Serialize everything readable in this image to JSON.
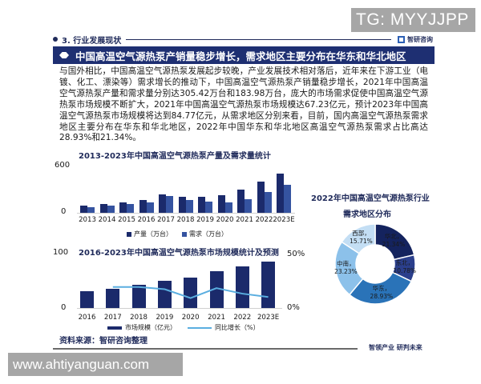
{
  "overlays": {
    "top_right_tag": "TG: MYYJJPP",
    "bottom_left_url": "www.ahtiyanguan.com"
  },
  "header": {
    "section": "3. 行业发展现状",
    "brand": "智研咨询",
    "title": "中国高温空气源热泵产销量稳步增长，需求地区主要分布在华东和华北地区"
  },
  "body_text": "与国外相比，中国高温空气源热泵发展起步较晚，产业发展技术相对落后，近年来在下游工业（电镀、化工、漂染等）需求增长的推动下，中国高温空气源热泵产销量稳步增长，2021年中国高温空气源热泵产量和需求量分别达305.42万台和183.98万台，庞大的市场需求促使中国高温空气源热泵市场规模不断扩大，2021年中国高温空气源热泵市场规模达67.23亿元，预计2023年中国高温空气源热泵市场规模将达到84.77亿元，从需求地区分别来看，目前，国内高温空气源热泵需求地区主要分布在华东和华北地区，2022年中国华东和华北地区高温空气源热泵需求占比高达28.93%和21.34%。",
  "footer": {
    "source": "资料来源：智研咨询整理",
    "slogan": "智领产业 研判未来"
  },
  "colors": {
    "navy": "#1e2f72",
    "production": "#1b2a6b",
    "demand": "#3553a0",
    "market": "#1b2a6b",
    "growth_line": "#5aaee0",
    "pie": [
      "#14235e",
      "#2b3f8c",
      "#2a73b8",
      "#8cc1ea",
      "#c3def4"
    ]
  },
  "chart_data": [
    {
      "type": "bar",
      "title": "2013-2023年中国高温空气源热泵产量及需求量统计",
      "categories": [
        "2013",
        "2014",
        "2015",
        "2016",
        "2017",
        "2018",
        "2019",
        "2020",
        "2021",
        "2022",
        "2023E"
      ],
      "series": [
        {
          "name": "产量（万台）",
          "values": [
            95,
            115,
            135,
            165,
            245,
            210,
            210,
            230,
            305.42,
            410,
            515
          ]
        },
        {
          "name": "需求（万台）",
          "values": [
            75,
            100,
            115,
            140,
            225,
            165,
            150,
            135,
            183.98,
            275,
            365
          ]
        }
      ],
      "xlabel": "",
      "ylabel": "",
      "yticks": [
        "0",
        "600"
      ],
      "ylim": [
        0,
        600
      ],
      "legend_position": "bottom"
    },
    {
      "type": "pie",
      "title": "2022年中国高温空气源热泵行业需求地区分布",
      "title_lines": [
        "2022年中国高温空气源热泵行业",
        "需求地区分布"
      ],
      "donut": true,
      "categories": [
        "华北",
        "东北",
        "华东",
        "中南",
        "西部"
      ],
      "values": [
        21.34,
        10.78,
        28.93,
        23.23,
        15.71
      ],
      "labels": [
        "华北，21.34%",
        "东北，10.78%",
        "华东，28.93%",
        "中南，23.23%",
        "西部，15.71%"
      ]
    },
    {
      "type": "bar",
      "title": "2016-2023年中国高温空气源热泵市场规模统计及预测",
      "categories": [
        "2016",
        "2017",
        "2018",
        "2019",
        "2020",
        "2021",
        "2022",
        "2023E"
      ],
      "series": [
        {
          "name": "市场规模（亿元）",
          "type": "bar",
          "axis": "left",
          "values": [
            30,
            35,
            42,
            49,
            55,
            67.23,
            75,
            84.77
          ]
        },
        {
          "name": "同比增长（%）",
          "type": "line",
          "axis": "right",
          "values": [
            null,
            19,
            19,
            17,
            9,
            18,
            13,
            10
          ]
        }
      ],
      "yticks_left": [
        "0",
        "100"
      ],
      "yticks_right": [
        "0%",
        "50%"
      ],
      "ylim_left": [
        0,
        100
      ],
      "ylim_right": [
        0,
        50
      ],
      "legend_position": "bottom"
    }
  ]
}
